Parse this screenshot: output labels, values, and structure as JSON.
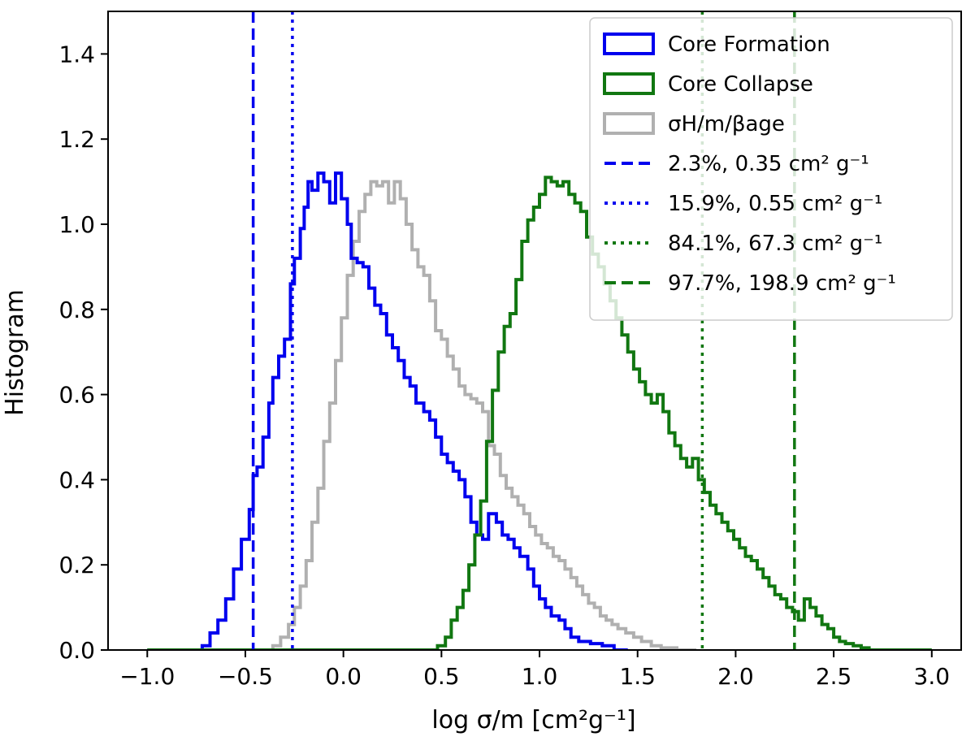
{
  "chart_data": {
    "type": "step-histogram",
    "xlabel": "log σ/m [cm²g⁻¹]",
    "ylabel": "Histogram",
    "xlim": [
      -1.2,
      3.15
    ],
    "ylim": [
      0,
      1.5
    ],
    "xticks": [
      -1.0,
      -0.5,
      0.0,
      0.5,
      1.0,
      1.5,
      2.0,
      2.5,
      3.0
    ],
    "xtick_labels": [
      "−1.0",
      "−0.5",
      "0.0",
      "0.5",
      "1.0",
      "1.5",
      "2.0",
      "2.5",
      "3.0"
    ],
    "yticks": [
      0.0,
      0.2,
      0.4,
      0.6,
      0.8,
      1.0,
      1.2,
      1.4
    ],
    "ytick_labels": [
      "0.0",
      "0.2",
      "0.4",
      "0.6",
      "0.8",
      "1.0",
      "1.2",
      "1.4"
    ],
    "legend_position": "top-right",
    "series": [
      {
        "name": "Core Formation",
        "color": "#0000ee",
        "points": [
          [
            -1.0,
            0.0
          ],
          [
            -0.75,
            0.0
          ],
          [
            -0.72,
            0.01
          ],
          [
            -0.68,
            0.04
          ],
          [
            -0.64,
            0.07
          ],
          [
            -0.6,
            0.12
          ],
          [
            -0.56,
            0.19
          ],
          [
            -0.52,
            0.26
          ],
          [
            -0.48,
            0.33
          ],
          [
            -0.46,
            0.41
          ],
          [
            -0.44,
            0.43
          ],
          [
            -0.41,
            0.5
          ],
          [
            -0.38,
            0.58
          ],
          [
            -0.36,
            0.64
          ],
          [
            -0.33,
            0.69
          ],
          [
            -0.3,
            0.73
          ],
          [
            -0.27,
            0.86
          ],
          [
            -0.25,
            0.92
          ],
          [
            -0.22,
            0.99
          ],
          [
            -0.2,
            1.04
          ],
          [
            -0.18,
            1.1
          ],
          [
            -0.16,
            1.08
          ],
          [
            -0.13,
            1.12
          ],
          [
            -0.1,
            1.1
          ],
          [
            -0.07,
            1.05
          ],
          [
            -0.04,
            1.12
          ],
          [
            -0.01,
            1.06
          ],
          [
            0.02,
            1.0
          ],
          [
            0.04,
            0.92
          ],
          [
            0.07,
            0.91
          ],
          [
            0.1,
            0.9
          ],
          [
            0.13,
            0.85
          ],
          [
            0.16,
            0.81
          ],
          [
            0.19,
            0.79
          ],
          [
            0.22,
            0.74
          ],
          [
            0.25,
            0.71
          ],
          [
            0.28,
            0.68
          ],
          [
            0.31,
            0.64
          ],
          [
            0.34,
            0.62
          ],
          [
            0.37,
            0.58
          ],
          [
            0.41,
            0.56
          ],
          [
            0.44,
            0.54
          ],
          [
            0.47,
            0.5
          ],
          [
            0.5,
            0.46
          ],
          [
            0.53,
            0.44
          ],
          [
            0.56,
            0.42
          ],
          [
            0.59,
            0.4
          ],
          [
            0.62,
            0.36
          ],
          [
            0.65,
            0.3
          ],
          [
            0.68,
            0.27
          ],
          [
            0.71,
            0.26
          ],
          [
            0.74,
            0.32
          ],
          [
            0.78,
            0.3
          ],
          [
            0.81,
            0.27
          ],
          [
            0.84,
            0.26
          ],
          [
            0.87,
            0.24
          ],
          [
            0.9,
            0.22
          ],
          [
            0.94,
            0.19
          ],
          [
            0.97,
            0.15
          ],
          [
            1.0,
            0.12
          ],
          [
            1.03,
            0.1
          ],
          [
            1.06,
            0.08
          ],
          [
            1.1,
            0.07
          ],
          [
            1.13,
            0.05
          ],
          [
            1.16,
            0.03
          ],
          [
            1.2,
            0.02
          ],
          [
            1.26,
            0.015
          ],
          [
            1.32,
            0.01
          ],
          [
            1.38,
            0.0
          ],
          [
            1.45,
            0.0
          ]
        ]
      },
      {
        "name": "Core Collapse",
        "color": "#117711",
        "points": [
          [
            -1.0,
            0.0
          ],
          [
            0.45,
            0.0
          ],
          [
            0.48,
            0.01
          ],
          [
            0.52,
            0.03
          ],
          [
            0.55,
            0.07
          ],
          [
            0.58,
            0.1
          ],
          [
            0.61,
            0.14
          ],
          [
            0.64,
            0.2
          ],
          [
            0.67,
            0.27
          ],
          [
            0.7,
            0.35
          ],
          [
            0.73,
            0.49
          ],
          [
            0.76,
            0.61
          ],
          [
            0.79,
            0.7
          ],
          [
            0.82,
            0.76
          ],
          [
            0.85,
            0.79
          ],
          [
            0.88,
            0.87
          ],
          [
            0.91,
            0.96
          ],
          [
            0.94,
            1.01
          ],
          [
            0.97,
            1.04
          ],
          [
            1.0,
            1.07
          ],
          [
            1.03,
            1.11
          ],
          [
            1.06,
            1.1
          ],
          [
            1.09,
            1.09
          ],
          [
            1.12,
            1.1
          ],
          [
            1.15,
            1.07
          ],
          [
            1.18,
            1.05
          ],
          [
            1.21,
            1.03
          ],
          [
            1.24,
            0.97
          ],
          [
            1.27,
            0.93
          ],
          [
            1.3,
            0.9
          ],
          [
            1.33,
            0.86
          ],
          [
            1.36,
            0.82
          ],
          [
            1.39,
            0.78
          ],
          [
            1.42,
            0.74
          ],
          [
            1.45,
            0.7
          ],
          [
            1.48,
            0.66
          ],
          [
            1.51,
            0.63
          ],
          [
            1.54,
            0.6
          ],
          [
            1.57,
            0.58
          ],
          [
            1.6,
            0.6
          ],
          [
            1.63,
            0.56
          ],
          [
            1.66,
            0.51
          ],
          [
            1.69,
            0.48
          ],
          [
            1.72,
            0.45
          ],
          [
            1.75,
            0.43
          ],
          [
            1.78,
            0.45
          ],
          [
            1.81,
            0.4
          ],
          [
            1.84,
            0.37
          ],
          [
            1.87,
            0.34
          ],
          [
            1.9,
            0.32
          ],
          [
            1.93,
            0.3
          ],
          [
            1.96,
            0.28
          ],
          [
            1.99,
            0.26
          ],
          [
            2.02,
            0.24
          ],
          [
            2.05,
            0.22
          ],
          [
            2.08,
            0.21
          ],
          [
            2.11,
            0.19
          ],
          [
            2.14,
            0.17
          ],
          [
            2.17,
            0.15
          ],
          [
            2.2,
            0.13
          ],
          [
            2.23,
            0.12
          ],
          [
            2.26,
            0.1
          ],
          [
            2.29,
            0.09
          ],
          [
            2.32,
            0.07
          ],
          [
            2.35,
            0.12
          ],
          [
            2.38,
            0.1
          ],
          [
            2.41,
            0.08
          ],
          [
            2.44,
            0.06
          ],
          [
            2.47,
            0.05
          ],
          [
            2.5,
            0.03
          ],
          [
            2.53,
            0.02
          ],
          [
            2.56,
            0.015
          ],
          [
            2.6,
            0.01
          ],
          [
            2.64,
            0.005
          ],
          [
            2.68,
            0.0
          ],
          [
            3.0,
            0.0
          ]
        ]
      },
      {
        "name": "σH/m/βage",
        "color": "#b0b0b0",
        "points": [
          [
            -1.0,
            0.0
          ],
          [
            -0.42,
            0.0
          ],
          [
            -0.36,
            0.01
          ],
          [
            -0.32,
            0.03
          ],
          [
            -0.28,
            0.06
          ],
          [
            -0.25,
            0.1
          ],
          [
            -0.22,
            0.15
          ],
          [
            -0.19,
            0.21
          ],
          [
            -0.16,
            0.3
          ],
          [
            -0.13,
            0.38
          ],
          [
            -0.1,
            0.49
          ],
          [
            -0.07,
            0.58
          ],
          [
            -0.04,
            0.68
          ],
          [
            -0.01,
            0.78
          ],
          [
            0.02,
            0.88
          ],
          [
            0.05,
            0.96
          ],
          [
            0.08,
            1.03
          ],
          [
            0.11,
            1.07
          ],
          [
            0.14,
            1.1
          ],
          [
            0.17,
            1.09
          ],
          [
            0.2,
            1.1
          ],
          [
            0.23,
            1.05
          ],
          [
            0.26,
            1.1
          ],
          [
            0.29,
            1.06
          ],
          [
            0.32,
            1.0
          ],
          [
            0.35,
            0.94
          ],
          [
            0.38,
            0.9
          ],
          [
            0.41,
            0.88
          ],
          [
            0.44,
            0.82
          ],
          [
            0.47,
            0.75
          ],
          [
            0.5,
            0.73
          ],
          [
            0.53,
            0.69
          ],
          [
            0.56,
            0.66
          ],
          [
            0.59,
            0.62
          ],
          [
            0.62,
            0.6
          ],
          [
            0.65,
            0.59
          ],
          [
            0.68,
            0.58
          ],
          [
            0.71,
            0.56
          ],
          [
            0.74,
            0.48
          ],
          [
            0.77,
            0.46
          ],
          [
            0.8,
            0.41
          ],
          [
            0.83,
            0.38
          ],
          [
            0.86,
            0.36
          ],
          [
            0.89,
            0.34
          ],
          [
            0.92,
            0.32
          ],
          [
            0.95,
            0.29
          ],
          [
            0.98,
            0.27
          ],
          [
            1.01,
            0.25
          ],
          [
            1.04,
            0.24
          ],
          [
            1.07,
            0.22
          ],
          [
            1.1,
            0.21
          ],
          [
            1.13,
            0.19
          ],
          [
            1.16,
            0.17
          ],
          [
            1.19,
            0.15
          ],
          [
            1.22,
            0.13
          ],
          [
            1.25,
            0.11
          ],
          [
            1.28,
            0.1
          ],
          [
            1.31,
            0.08
          ],
          [
            1.34,
            0.07
          ],
          [
            1.37,
            0.06
          ],
          [
            1.4,
            0.05
          ],
          [
            1.44,
            0.04
          ],
          [
            1.48,
            0.03
          ],
          [
            1.52,
            0.02
          ],
          [
            1.57,
            0.01
          ],
          [
            1.62,
            0.005
          ],
          [
            1.7,
            0.0
          ],
          [
            1.8,
            0.0
          ]
        ]
      }
    ],
    "vlines": [
      {
        "x": -0.46,
        "color": "#0000ee",
        "style": "dashed"
      },
      {
        "x": -0.26,
        "color": "#0000ee",
        "style": "dotted"
      },
      {
        "x": 1.83,
        "color": "#117711",
        "style": "dotted"
      },
      {
        "x": 2.3,
        "color": "#117711",
        "style": "dashed"
      }
    ],
    "legend": [
      {
        "kind": "box",
        "color": "#0000ee",
        "label": "Core Formation"
      },
      {
        "kind": "box",
        "color": "#117711",
        "label": "Core Collapse"
      },
      {
        "kind": "box",
        "color": "#b0b0b0",
        "label": "σH/m/βage"
      },
      {
        "kind": "dashed",
        "color": "#0000ee",
        "label": "2.3%, 0.35 cm² g⁻¹"
      },
      {
        "kind": "dotted",
        "color": "#0000ee",
        "label": "15.9%, 0.55 cm² g⁻¹"
      },
      {
        "kind": "dotted",
        "color": "#117711",
        "label": "84.1%, 67.3 cm² g⁻¹"
      },
      {
        "kind": "dashed",
        "color": "#117711",
        "label": "97.7%, 198.9 cm² g⁻¹"
      }
    ]
  }
}
